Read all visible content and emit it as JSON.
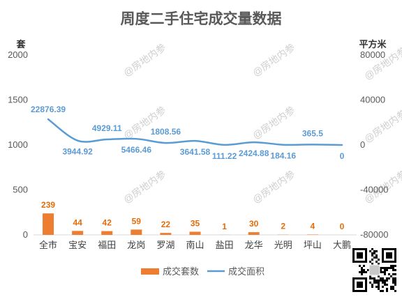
{
  "chart_data": {
    "type": "bar+line",
    "title": "周度二手住宅成交量数据",
    "categories": [
      "全市",
      "宝安",
      "福田",
      "龙岗",
      "罗湖",
      "南山",
      "盐田",
      "龙华",
      "光明",
      "坪山",
      "大鹏"
    ],
    "series": [
      {
        "name": "成交套数",
        "type": "bar",
        "axis": "left",
        "color": "#ed7d31",
        "values": [
          239,
          44,
          42,
          59,
          22,
          35,
          1,
          30,
          2,
          4,
          0
        ],
        "labels": [
          "239",
          "44",
          "42",
          "59",
          "22",
          "35",
          "1",
          "30",
          "2",
          "4",
          "0"
        ]
      },
      {
        "name": "成交面积",
        "type": "line",
        "axis": "right",
        "color": "#5b9bd5",
        "values": [
          22876.39,
          3944.92,
          4929.11,
          5466.46,
          1808.56,
          3641.58,
          111.22,
          2424.88,
          184.16,
          365.5,
          0
        ],
        "labels": [
          "22876.39",
          "3944.92",
          "4929.11",
          "5466.46",
          "1808.56",
          "3641.58",
          "111.22",
          "2424.88",
          "184.16",
          "365.5",
          "0"
        ]
      }
    ],
    "y_left": {
      "label": "套",
      "min": 0,
      "max": 2000,
      "ticks": [
        "0",
        "500",
        "1000",
        "1500",
        "2000"
      ]
    },
    "y_right": {
      "label": "平方米",
      "min": -80000,
      "max": 80000,
      "ticks": [
        "-80000",
        "-40000",
        "0",
        "40000",
        "80000"
      ]
    },
    "grid": false,
    "legend": "bottom"
  },
  "watermark": "@房地内参"
}
